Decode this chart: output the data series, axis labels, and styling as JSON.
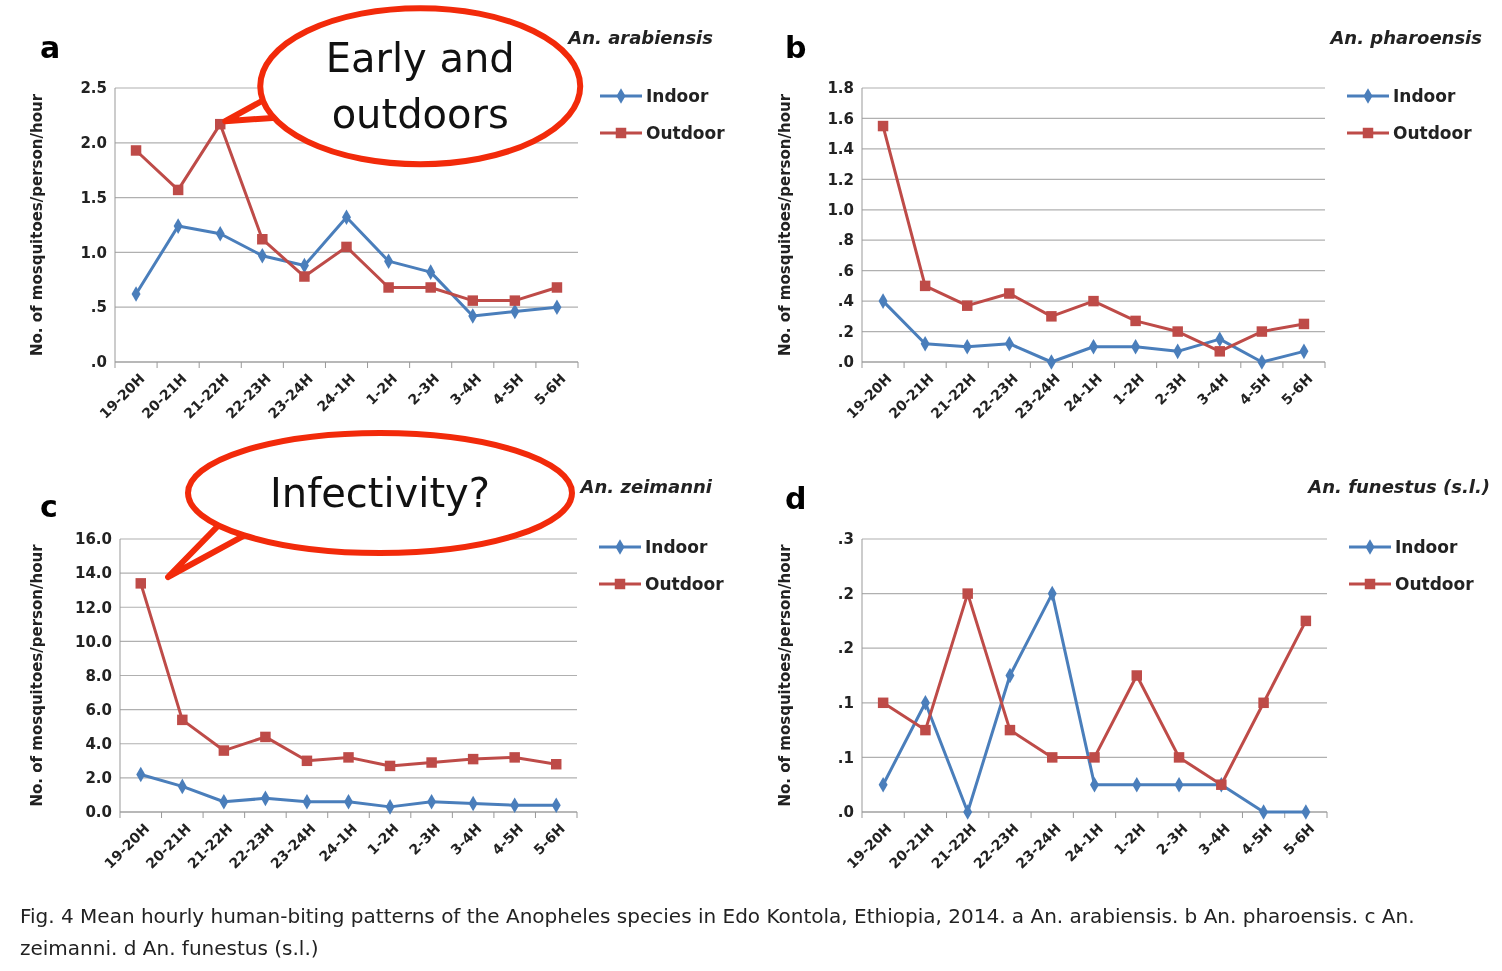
{
  "chart_data": [
    {
      "type": "line",
      "title": "a",
      "subtitle": "An. arabiensis",
      "ylabel": "No. of mosquitoes/person/hour",
      "categories": [
        "19-20H",
        "20-21H",
        "21-22H",
        "22-23H",
        "23-24H",
        "24-1H",
        "1-2H",
        "2-3H",
        "3-4H",
        "4-5H",
        "5-6H"
      ],
      "ylim": [
        0,
        2.5
      ],
      "yticks": [
        {
          "value": 0,
          "label": ".0"
        },
        {
          "value": 0.5,
          "label": ".5"
        },
        {
          "value": 1,
          "label": "1.0"
        },
        1.5,
        {
          "value": 2,
          "label": "2.0"
        },
        2.5
      ],
      "grid": "y",
      "legend": "right",
      "line_style": "solid",
      "series": [
        {
          "name": "Indoor",
          "color": "#4a7ebb",
          "marker": "diamond",
          "values": [
            0.62,
            1.24,
            1.17,
            0.97,
            0.88,
            1.32,
            0.92,
            0.82,
            0.42,
            0.46,
            0.5
          ]
        },
        {
          "name": "Outdoor",
          "color": "#be4b48",
          "marker": "square",
          "values": [
            1.93,
            1.57,
            2.17,
            1.12,
            0.78,
            1.05,
            0.68,
            0.68,
            0.56,
            0.56,
            0.68
          ]
        }
      ],
      "annotations": [
        {
          "text": "Early and outdoors",
          "x": "21-22H",
          "y": 2.17
        }
      ]
    },
    {
      "type": "line",
      "title": "b",
      "subtitle": "An. pharoensis",
      "ylabel": "No. of mosquitoes/person/hour",
      "categories": [
        "19-20H",
        "20-21H",
        "21-22H",
        "22-23H",
        "23-24H",
        "24-1H",
        "1-2H",
        "2-3H",
        "3-4H",
        "4-5H",
        "5-6H"
      ],
      "ylim": [
        0,
        1.8
      ],
      "yticks": [
        {
          "value": 0,
          "label": ".0"
        },
        {
          "value": 0.2,
          "label": ".2"
        },
        {
          "value": 0.4,
          "label": ".4"
        },
        {
          "value": 0.6,
          "label": ".6"
        },
        {
          "value": 0.8,
          "label": ".8"
        },
        {
          "value": 1,
          "label": "1.0"
        },
        1.2,
        1.4,
        1.6,
        1.8
      ],
      "grid": "y",
      "legend": "right",
      "line_style": "solid",
      "series": [
        {
          "name": "Indoor",
          "color": "#4a7ebb",
          "marker": "diamond",
          "values": [
            0.4,
            0.12,
            0.1,
            0.12,
            0,
            0.1,
            0.1,
            0.07,
            0.15,
            0,
            0.07
          ]
        },
        {
          "name": "Outdoor",
          "color": "#be4b48",
          "marker": "square",
          "values": [
            1.55,
            0.5,
            0.37,
            0.45,
            0.3,
            0.4,
            0.27,
            0.2,
            0.07,
            0.2,
            0.25
          ]
        }
      ]
    },
    {
      "type": "line",
      "title": "c",
      "subtitle": "An. zeimanni",
      "ylabel": "No. of mosquitoes/person/hour",
      "categories": [
        "19-20H",
        "20-21H",
        "21-22H",
        "22-23H",
        "23-24H",
        "24-1H",
        "1-2H",
        "2-3H",
        "3-4H",
        "4-5H",
        "5-6H"
      ],
      "ylim": [
        0,
        16
      ],
      "yticks": [
        {
          "value": 0,
          "label": "0.0"
        },
        {
          "value": 2,
          "label": "2.0"
        },
        {
          "value": 4,
          "label": "4.0"
        },
        {
          "value": 6,
          "label": "6.0"
        },
        {
          "value": 8,
          "label": "8.0"
        },
        {
          "value": 10,
          "label": "10.0"
        },
        {
          "value": 12,
          "label": "12.0"
        },
        {
          "value": 14,
          "label": "14.0"
        },
        {
          "value": 16,
          "label": "16.0"
        }
      ],
      "grid": "y",
      "legend": "right",
      "line_style": "solid",
      "series": [
        {
          "name": "Indoor",
          "color": "#4a7ebb",
          "marker": "diamond",
          "values": [
            2.2,
            1.5,
            0.6,
            0.8,
            0.6,
            0.6,
            0.3,
            0.6,
            0.5,
            0.4,
            0.4
          ]
        },
        {
          "name": "Outdoor",
          "color": "#be4b48",
          "marker": "square",
          "values": [
            13.4,
            5.4,
            3.6,
            4.4,
            3.0,
            3.2,
            2.7,
            2.9,
            3.1,
            3.2,
            2.8
          ]
        }
      ],
      "annotations": [
        "Infectivity?"
      ]
    },
    {
      "type": "line",
      "title": "d",
      "subtitle": "An. funestus (s.l.)",
      "ylabel": "No. of mosquitoes/person/hour",
      "categories": [
        "19-20H",
        "20-21H",
        "21-22H",
        "22-23H",
        "23-24H",
        "24-1H",
        "1-2H",
        "2-3H",
        "3-4H",
        "4-5H",
        "5-6H"
      ],
      "ylim": [
        0,
        0.25
      ],
      "yticks": [
        {
          "value": 0,
          "label": ".0"
        },
        {
          "value": 0.05,
          "label": ".1"
        },
        {
          "value": 0.1,
          "label": ".1"
        },
        {
          "value": 0.15,
          "label": ".2"
        },
        {
          "value": 0.2,
          "label": ".2"
        },
        {
          "value": 0.25,
          "label": ".3"
        }
      ],
      "grid": "y",
      "legend": "right",
      "line_style": "solid",
      "series": [
        {
          "name": "Indoor",
          "color": "#4a7ebb",
          "marker": "diamond",
          "values": [
            0.025,
            0.1,
            0,
            0.125,
            0.2,
            0.025,
            0.025,
            0.025,
            0.025,
            0,
            0
          ]
        },
        {
          "name": "Outdoor",
          "color": "#be4b48",
          "marker": "square",
          "values": [
            0.1,
            0.075,
            0.2,
            0.075,
            0.05,
            0.05,
            0.125,
            0.05,
            0.025,
            0.1,
            0.175
          ]
        }
      ],
      "annotations": [
        "Fig. 4 Mean hourly human-biting patterns of the Anopheles species in Edo Kontola, Ethiopia, 2014. a An. arabiensis. b An. pharoensis. c An. zeimanni. d An. funestus (s.l.)"
      ]
    }
  ]
}
